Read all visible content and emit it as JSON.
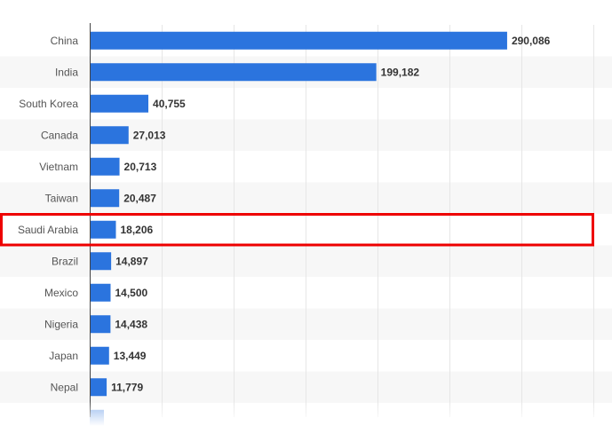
{
  "chart_data": {
    "type": "bar",
    "orientation": "horizontal",
    "categories": [
      "China",
      "India",
      "South Korea",
      "Canada",
      "Vietnam",
      "Taiwan",
      "Saudi Arabia",
      "Brazil",
      "Mexico",
      "Nigeria",
      "Japan",
      "Nepal"
    ],
    "values": [
      290086,
      199182,
      40755,
      27013,
      20713,
      20487,
      18206,
      14897,
      14500,
      14438,
      13449,
      11779
    ],
    "value_labels": [
      "290,086",
      "199,182",
      "40,755",
      "27,013",
      "20,713",
      "20,487",
      "18,206",
      "14,897",
      "14,500",
      "14,438",
      "13,449",
      "11,779"
    ],
    "title": "",
    "xlabel": "",
    "ylabel": "",
    "xlim": [
      0,
      350000
    ],
    "grid": true,
    "highlighted_category": "Saudi Arabia",
    "colors": {
      "bar": "#2b74de",
      "highlight_box": "#ee0000",
      "grid": "#e6e6e6",
      "stripe": "#f7f7f7",
      "axis": "#444444"
    }
  }
}
